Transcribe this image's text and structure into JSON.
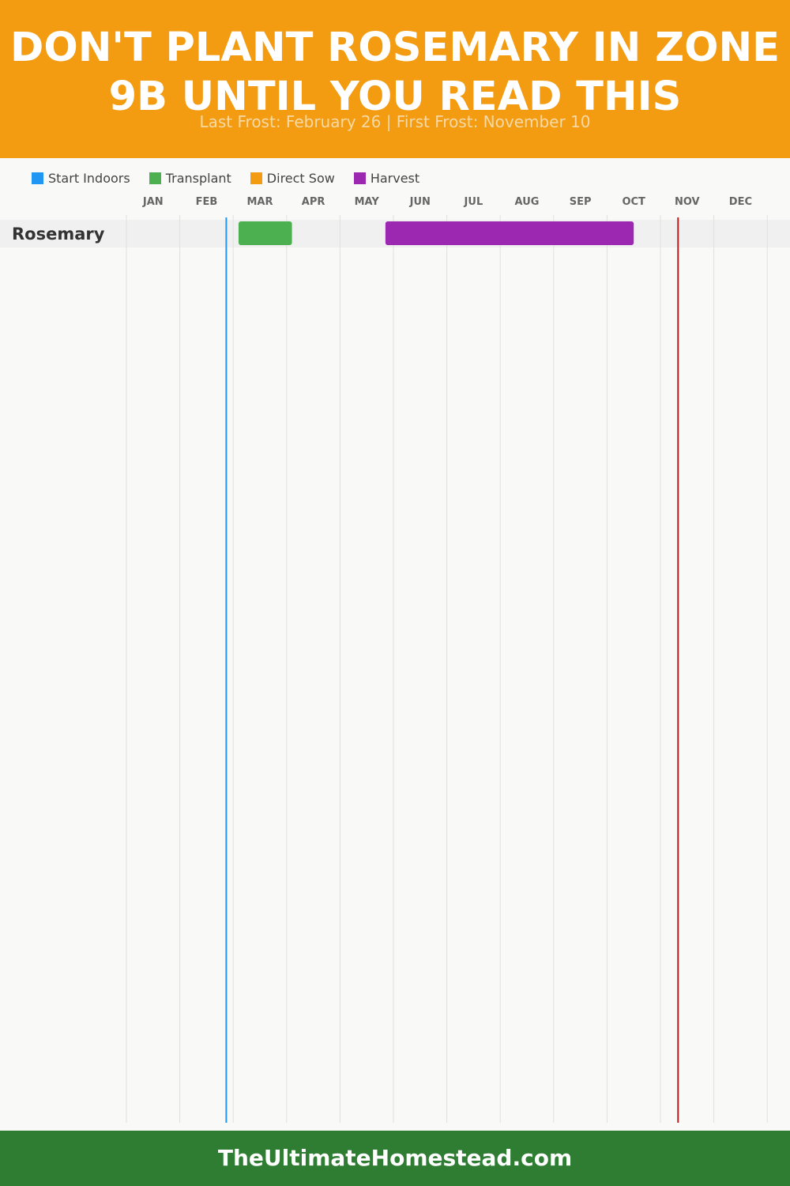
{
  "header": {
    "title": "DON'T PLANT ROSEMARY IN ZONE 9B UNTIL YOU READ THIS",
    "subtitle": "Last Frost: February 26 | First Frost: November 10"
  },
  "legend": [
    {
      "label": "Start Indoors",
      "color": "#2196f3"
    },
    {
      "label": "Transplant",
      "color": "#4caf50"
    },
    {
      "label": "Direct Sow",
      "color": "#f39c12"
    },
    {
      "label": "Harvest",
      "color": "#9c27b0"
    }
  ],
  "footer": {
    "text": "TheUltimateHomestead.com"
  },
  "chart_data": {
    "type": "gantt",
    "months": [
      "JAN",
      "FEB",
      "MAR",
      "APR",
      "MAY",
      "JUN",
      "JUL",
      "AUG",
      "SEP",
      "OCT",
      "NOV",
      "DEC"
    ],
    "rows": [
      {
        "crop": "Rosemary",
        "bars": [
          {
            "activity": "Transplant",
            "start_month": 3.1,
            "end_month": 4.1
          },
          {
            "activity": "Harvest",
            "start_month": 5.85,
            "end_month": 10.5
          }
        ]
      }
    ],
    "markers": [
      {
        "label": "Last Frost",
        "month": 2.87,
        "color": "#2196f3"
      },
      {
        "label": "First Frost",
        "month": 11.33,
        "color": "#b71c1c"
      }
    ]
  }
}
